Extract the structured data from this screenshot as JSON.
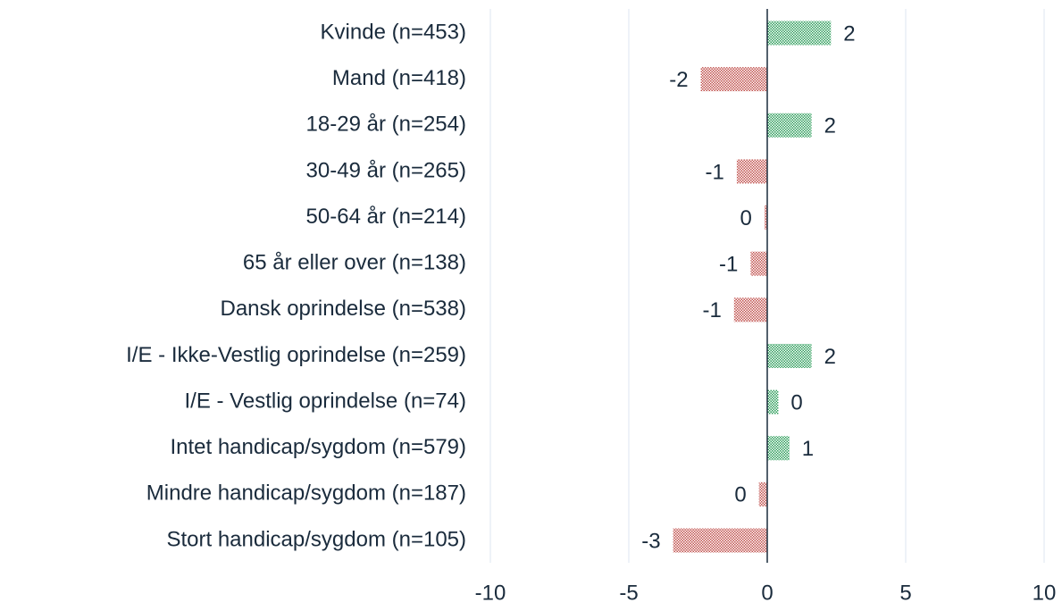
{
  "chart_data": {
    "type": "bar",
    "orientation": "horizontal",
    "categories": [
      "Kvinde (n=453)",
      "Mand (n=418)",
      "18-29 år (n=254)",
      "30-49 år (n=265)",
      "50-64 år (n=214)",
      "65 år eller over (n=138)",
      "Dansk oprindelse (n=538)",
      "I/E - Ikke-Vestlig oprindelse (n=259)",
      "I/E - Vestlig oprindelse (n=74)",
      "Intet handicap/sygdom (n=579)",
      "Mindre handicap/sygdom (n=187)",
      "Stort handicap/sygdom (n=105)"
    ],
    "values": [
      2.3,
      -2.4,
      1.6,
      -1.1,
      -0.1,
      -0.6,
      -1.2,
      1.6,
      0.4,
      0.8,
      -0.3,
      -3.4
    ],
    "value_labels": [
      "2",
      "-2",
      "2",
      "-1",
      "0",
      "-1",
      "-1",
      "2",
      "0",
      "1",
      "0",
      "-3"
    ],
    "positive_color": "#2e9e5b",
    "negative_color": "#c0504d",
    "xlim": [
      -10,
      10
    ],
    "xticks": [
      -10,
      -5,
      0,
      5,
      10
    ],
    "grid": true
  }
}
